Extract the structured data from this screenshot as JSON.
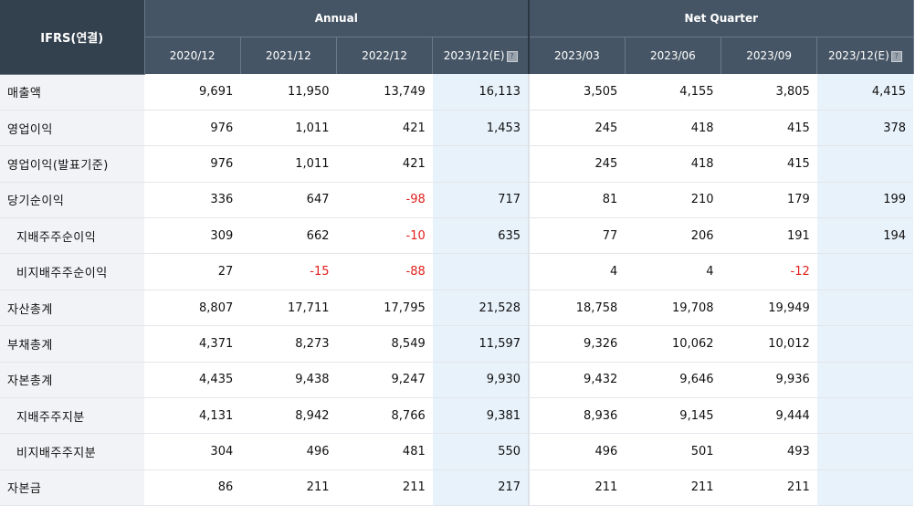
{
  "header": {
    "corner": "IFRS(연결)",
    "annual_label": "Annual",
    "quarter_label": "Net Quarter",
    "annual_periods": [
      "2020/12",
      "2021/12",
      "2022/12",
      "2023/12(E)"
    ],
    "quarter_periods": [
      "2023/03",
      "2023/06",
      "2023/09",
      "2023/12(E)"
    ],
    "estimate_icon": "help-icon"
  },
  "rows": [
    {
      "label": "매출액",
      "indent": false,
      "values": [
        "9,691",
        "11,950",
        "13,749",
        "16,113",
        "3,505",
        "4,155",
        "3,805",
        "4,415"
      ]
    },
    {
      "label": "영업이익",
      "indent": false,
      "values": [
        "976",
        "1,011",
        "421",
        "1,453",
        "245",
        "418",
        "415",
        "378"
      ]
    },
    {
      "label": "영업이익(발표기준)",
      "indent": false,
      "values": [
        "976",
        "1,011",
        "421",
        "",
        "245",
        "418",
        "415",
        ""
      ]
    },
    {
      "label": "당기순이익",
      "indent": false,
      "values": [
        "336",
        "647",
        "-98",
        "717",
        "81",
        "210",
        "179",
        "199"
      ]
    },
    {
      "label": "지배주주순이익",
      "indent": true,
      "values": [
        "309",
        "662",
        "-10",
        "635",
        "77",
        "206",
        "191",
        "194"
      ]
    },
    {
      "label": "비지배주주순이익",
      "indent": true,
      "values": [
        "27",
        "-15",
        "-88",
        "",
        "4",
        "4",
        "-12",
        ""
      ]
    },
    {
      "label": "자산총계",
      "indent": false,
      "values": [
        "8,807",
        "17,711",
        "17,795",
        "21,528",
        "18,758",
        "19,708",
        "19,949",
        ""
      ]
    },
    {
      "label": "부채총계",
      "indent": false,
      "values": [
        "4,371",
        "8,273",
        "8,549",
        "11,597",
        "9,326",
        "10,062",
        "10,012",
        ""
      ]
    },
    {
      "label": "자본총계",
      "indent": false,
      "values": [
        "4,435",
        "9,438",
        "9,247",
        "9,930",
        "9,432",
        "9,646",
        "9,936",
        ""
      ]
    },
    {
      "label": "지배주주지분",
      "indent": true,
      "values": [
        "4,131",
        "8,942",
        "8,766",
        "9,381",
        "8,936",
        "9,145",
        "9,444",
        ""
      ]
    },
    {
      "label": "비지배주주지분",
      "indent": true,
      "values": [
        "304",
        "496",
        "481",
        "550",
        "496",
        "501",
        "493",
        ""
      ]
    },
    {
      "label": "자본금",
      "indent": false,
      "values": [
        "86",
        "211",
        "211",
        "217",
        "211",
        "211",
        "211",
        ""
      ]
    }
  ]
}
